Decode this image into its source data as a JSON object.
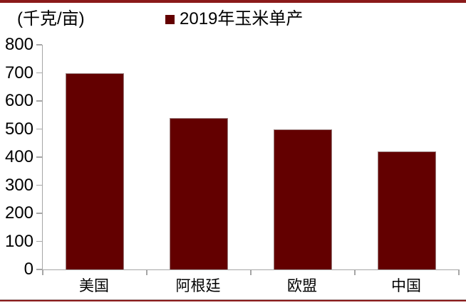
{
  "chart_data": {
    "type": "bar",
    "title": "2019年玉米单产",
    "unit_label": "(千克/亩)",
    "legend": {
      "marker_icon": "square-icon",
      "label": "2019年玉米单产",
      "position": "top-center"
    },
    "categories": [
      "美国",
      "阿根廷",
      "欧盟",
      "中国"
    ],
    "values": [
      700,
      540,
      500,
      420
    ],
    "ylim": [
      0,
      800
    ],
    "ytick_step": 100,
    "ytick_labels": [
      "0",
      "100",
      "200",
      "300",
      "400",
      "500",
      "600",
      "700",
      "800"
    ],
    "grid": false,
    "legend_position": "top",
    "colors": {
      "bar": "#630000",
      "accent_rule": "#8B1A1A",
      "axis": "#A6A6A6",
      "text": "#000000"
    }
  }
}
